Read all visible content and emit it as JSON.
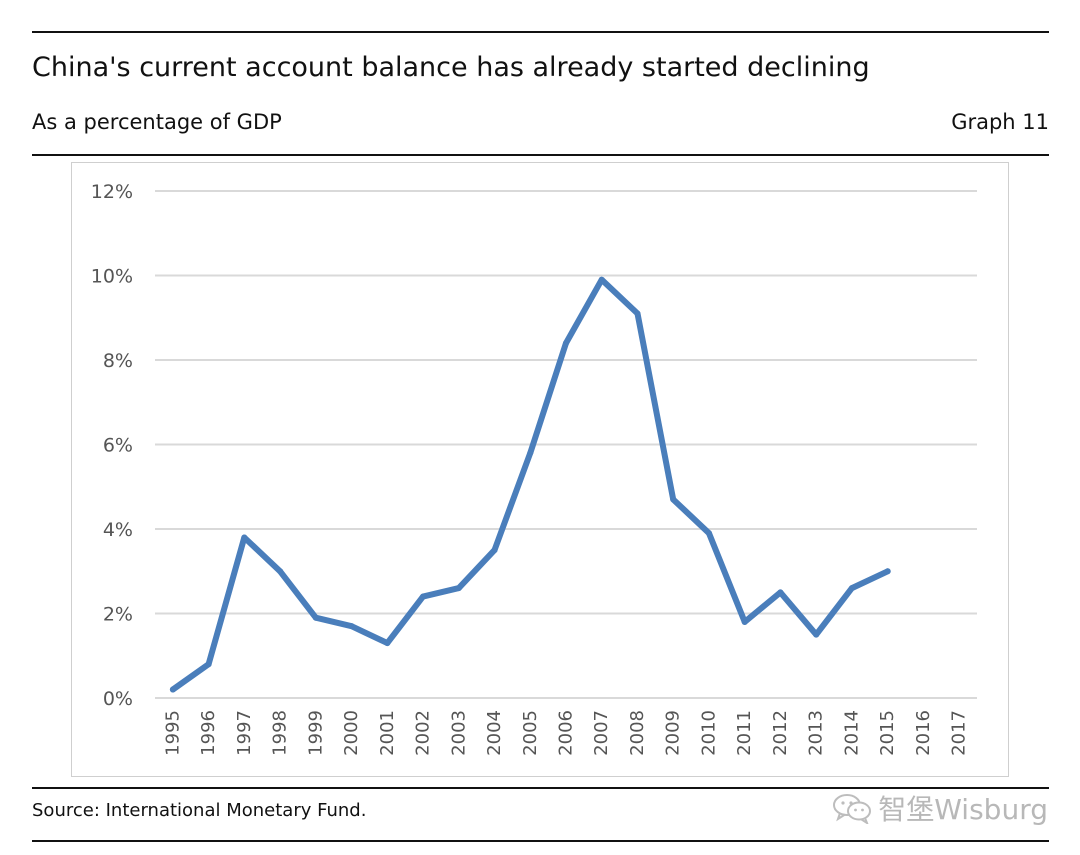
{
  "header": {
    "title": "China's current account balance has already started declining",
    "subtitle": "As a percentage of GDP",
    "graph_label": "Graph 11"
  },
  "footer": {
    "source": "Source: International Monetary Fund.",
    "watermark": "智堡Wisburg",
    "watermark_icon": "wechat-icon"
  },
  "colors": {
    "line": "#4a7ebb",
    "grid": "#d9d9d9",
    "axis_text": "#555555"
  },
  "chart_data": {
    "type": "line",
    "title": "China's current account balance has already started declining",
    "subtitle": "As a percentage of GDP",
    "xlabel": "",
    "ylabel": "",
    "grid": true,
    "legend": "none",
    "x": [
      "1995",
      "1996",
      "1997",
      "1998",
      "1999",
      "2000",
      "2001",
      "2002",
      "2003",
      "2004",
      "2005",
      "2006",
      "2007",
      "2008",
      "2009",
      "2010",
      "2011",
      "2012",
      "2013",
      "2014",
      "2015",
      "2016",
      "2017"
    ],
    "y_ticks": [
      "0%",
      "2%",
      "4%",
      "6%",
      "8%",
      "10%",
      "12%"
    ],
    "ylim": [
      0,
      12
    ],
    "series": [
      {
        "name": "Current account balance (% of GDP)",
        "values": [
          0.2,
          0.8,
          3.8,
          3.0,
          1.9,
          1.7,
          1.3,
          2.4,
          2.6,
          3.5,
          5.8,
          8.4,
          9.9,
          9.1,
          4.7,
          3.9,
          1.8,
          2.5,
          1.5,
          2.6,
          3.0,
          null,
          null
        ]
      }
    ]
  }
}
